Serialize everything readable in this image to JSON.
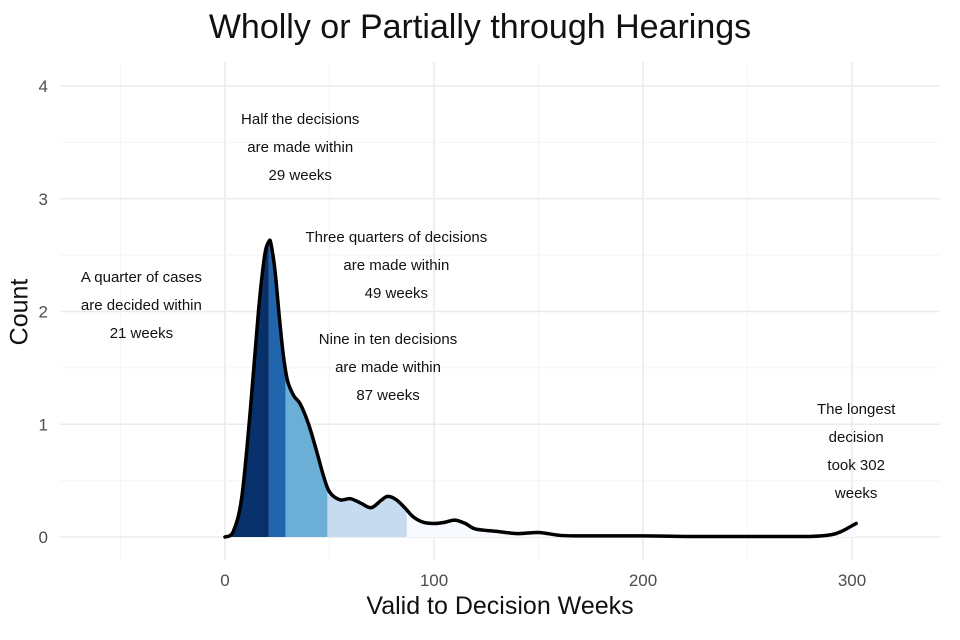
{
  "chart_data": {
    "type": "area",
    "title": "Wholly or Partially through Hearings",
    "xlabel": "Valid to Decision Weeks",
    "ylabel": "Count",
    "xlim": [
      -50,
      340
    ],
    "ylim": [
      0,
      4
    ],
    "x_ticks": [
      0,
      100,
      200,
      300
    ],
    "y_ticks": [
      0,
      1,
      2,
      3,
      4
    ],
    "grid": true,
    "density_curve": {
      "x": [
        0,
        4,
        8,
        12,
        16,
        19,
        21,
        22,
        24,
        26,
        28,
        30,
        33,
        36,
        40,
        44,
        47,
        50,
        55,
        60,
        65,
        70,
        75,
        78,
        82,
        86,
        90,
        95,
        100,
        105,
        110,
        115,
        120,
        130,
        140,
        150,
        160,
        170,
        180,
        200,
        220,
        240,
        260,
        280,
        290,
        295,
        300,
        302
      ],
      "y": [
        0,
        0.05,
        0.35,
        1.1,
        2.0,
        2.5,
        2.62,
        2.6,
        2.35,
        1.95,
        1.6,
        1.38,
        1.25,
        1.18,
        1.0,
        0.75,
        0.55,
        0.4,
        0.33,
        0.34,
        0.3,
        0.26,
        0.33,
        0.36,
        0.33,
        0.26,
        0.18,
        0.13,
        0.12,
        0.13,
        0.15,
        0.12,
        0.07,
        0.05,
        0.03,
        0.04,
        0.015,
        0.01,
        0.01,
        0.01,
        0.005,
        0.005,
        0.005,
        0.005,
        0.02,
        0.05,
        0.1,
        0.12
      ]
    },
    "quantile_bands": [
      {
        "from": 0,
        "to": 21,
        "color": "#08306b"
      },
      {
        "from": 21,
        "to": 29,
        "color": "#2166ac"
      },
      {
        "from": 29,
        "to": 49,
        "color": "#6baed6"
      },
      {
        "from": 49,
        "to": 87,
        "color": "#c6dbef"
      },
      {
        "from": 87,
        "to": 302,
        "color": "#f7fbff"
      }
    ],
    "annotations": [
      {
        "text": "A quarter of cases\nare decided within\n21 weeks",
        "x": -40,
        "y": 2.05
      },
      {
        "text": "Half the decisions\nare made within\n29 weeks",
        "x": 36,
        "y": 3.45
      },
      {
        "text": "Three quarters of decisions\nare made within\n49 weeks",
        "x": 82,
        "y": 2.4
      },
      {
        "text": "Nine in ten decisions\nare made within\n87 weeks",
        "x": 78,
        "y": 1.5
      },
      {
        "text": "The longest decision\ntook 302 weeks",
        "x": 302,
        "y": 1.0
      }
    ],
    "colors": {
      "curve": "#000000",
      "grid": "#ebebeb",
      "axis_text": "#4d4d4d"
    }
  }
}
